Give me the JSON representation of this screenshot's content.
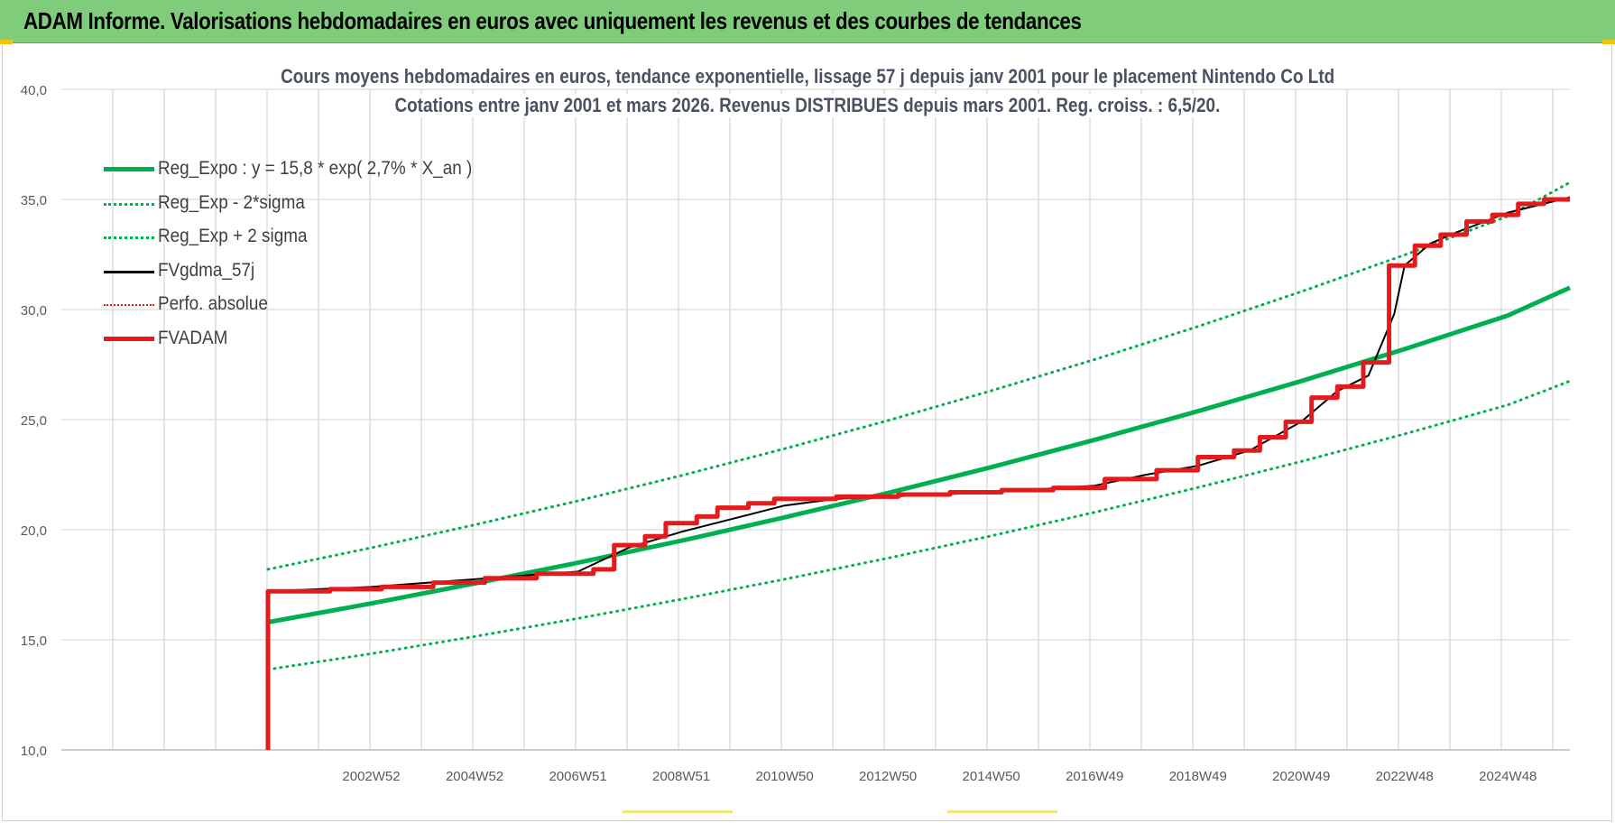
{
  "header": {
    "title": "ADAM Informe. Valorisations hebdomadaires en euros avec uniquement les revenus et des courbes de tendances"
  },
  "colors": {
    "header_bg": "#7fcc7a",
    "green": "#00b050",
    "red": "#e41a1c",
    "black": "#000000",
    "grid": "#d9d9d9",
    "axis_text": "#595959"
  },
  "chart_data": {
    "type": "line",
    "title": "Cours moyens hebdomadaires en euros, tendance exponentielle, lissage 57 j depuis janv 2001 pour le placement Nintendo Co Ltd",
    "subtitle": "Cotations entre janv 2001 et mars 2026. Revenus DISTRIBUES depuis mars 2001. Reg. croiss. : 6,5/20.",
    "ylim": [
      10,
      40
    ],
    "y_ticks": [
      "10,0",
      "15,0",
      "20,0",
      "25,0",
      "30,0",
      "35,0",
      "40,0"
    ],
    "x_ticks": [
      "2002W52",
      "2004W52",
      "2006W51",
      "2008W51",
      "2010W50",
      "2012W50",
      "2014W50",
      "2016W49",
      "2018W49",
      "2020W49",
      "2022W48",
      "2024W48"
    ],
    "x_tick_years": [
      2003.0,
      2005.0,
      2007.0,
      2009.0,
      2011.0,
      2013.0,
      2015.0,
      2017.0,
      2019.0,
      2021.0,
      2023.0,
      2025.0
    ],
    "x_range_years": [
      2001.0,
      2026.2
    ],
    "grid": true,
    "legend_position": "top-left",
    "series": [
      {
        "name": "Reg_Expo : y = 15,8 * exp( 2,7% *  X_an )",
        "style": "solid-thick",
        "color": "#00b050",
        "points": [
          [
            2001.0,
            15.8
          ],
          [
            2003.0,
            16.65
          ],
          [
            2005.0,
            17.56
          ],
          [
            2007.0,
            18.5
          ],
          [
            2009.0,
            19.5
          ],
          [
            2011.0,
            20.56
          ],
          [
            2013.0,
            21.67
          ],
          [
            2015.0,
            22.84
          ],
          [
            2017.0,
            24.08
          ],
          [
            2019.0,
            25.38
          ],
          [
            2021.0,
            26.75
          ],
          [
            2023.0,
            28.2
          ],
          [
            2025.0,
            29.73
          ],
          [
            2026.2,
            30.99
          ]
        ]
      },
      {
        "name": "Reg_Exp - 2*sigma",
        "style": "dotted",
        "color": "#00b050",
        "points": [
          [
            2001.0,
            13.65
          ],
          [
            2003.0,
            14.37
          ],
          [
            2005.0,
            15.15
          ],
          [
            2007.0,
            15.97
          ],
          [
            2009.0,
            16.84
          ],
          [
            2011.0,
            17.75
          ],
          [
            2013.0,
            18.71
          ],
          [
            2015.0,
            19.72
          ],
          [
            2017.0,
            20.79
          ],
          [
            2019.0,
            21.92
          ],
          [
            2021.0,
            23.1
          ],
          [
            2023.0,
            24.35
          ],
          [
            2025.0,
            25.67
          ],
          [
            2026.2,
            26.75
          ]
        ]
      },
      {
        "name": "Reg_Exp + 2 sigma",
        "style": "dotted",
        "color": "#00b050",
        "points": [
          [
            2001.0,
            18.2
          ],
          [
            2003.0,
            19.18
          ],
          [
            2005.0,
            20.22
          ],
          [
            2007.0,
            21.31
          ],
          [
            2009.0,
            22.46
          ],
          [
            2011.0,
            23.68
          ],
          [
            2013.0,
            24.96
          ],
          [
            2015.0,
            26.31
          ],
          [
            2017.0,
            27.73
          ],
          [
            2019.0,
            29.23
          ],
          [
            2021.0,
            30.81
          ],
          [
            2023.0,
            32.48
          ],
          [
            2025.0,
            34.24
          ],
          [
            2026.2,
            35.77
          ]
        ]
      },
      {
        "name": "FVgdma_57j",
        "style": "solid-thin",
        "color": "#000000",
        "points": [
          [
            2001.0,
            17.2
          ],
          [
            2003.0,
            17.4
          ],
          [
            2005.0,
            17.75
          ],
          [
            2007.0,
            18.1
          ],
          [
            2008.0,
            19.2
          ],
          [
            2009.0,
            19.9
          ],
          [
            2010.0,
            20.5
          ],
          [
            2011.0,
            21.1
          ],
          [
            2012.0,
            21.4
          ],
          [
            2013.0,
            21.5
          ],
          [
            2015.0,
            21.7
          ],
          [
            2017.0,
            22.0
          ],
          [
            2018.0,
            22.5
          ],
          [
            2019.0,
            22.9
          ],
          [
            2020.0,
            23.6
          ],
          [
            2021.0,
            24.9
          ],
          [
            2021.7,
            26.3
          ],
          [
            2022.3,
            27.0
          ],
          [
            2022.8,
            29.8
          ],
          [
            2023.0,
            32.0
          ],
          [
            2023.5,
            33.0
          ],
          [
            2024.0,
            33.5
          ],
          [
            2025.0,
            34.4
          ],
          [
            2026.2,
            35.1
          ]
        ]
      },
      {
        "name": "Perfo. absolue",
        "style": "dotted",
        "color": "#e41a1c",
        "points": []
      },
      {
        "name": "FVADAM",
        "style": "solid-thick",
        "color": "#e41a1c",
        "points": [
          [
            2001.0,
            10.0
          ],
          [
            2001.0,
            17.2
          ],
          [
            2002.2,
            17.3
          ],
          [
            2003.2,
            17.4
          ],
          [
            2004.2,
            17.6
          ],
          [
            2005.2,
            17.8
          ],
          [
            2006.2,
            18.0
          ],
          [
            2007.3,
            18.2
          ],
          [
            2007.7,
            19.3
          ],
          [
            2008.3,
            19.7
          ],
          [
            2008.7,
            20.3
          ],
          [
            2009.3,
            20.6
          ],
          [
            2009.7,
            21.0
          ],
          [
            2010.3,
            21.2
          ],
          [
            2010.8,
            21.4
          ],
          [
            2012.0,
            21.5
          ],
          [
            2013.2,
            21.6
          ],
          [
            2014.2,
            21.7
          ],
          [
            2015.2,
            21.8
          ],
          [
            2016.2,
            21.9
          ],
          [
            2017.2,
            22.3
          ],
          [
            2018.2,
            22.7
          ],
          [
            2019.0,
            23.3
          ],
          [
            2019.7,
            23.6
          ],
          [
            2020.2,
            24.2
          ],
          [
            2020.7,
            24.9
          ],
          [
            2021.2,
            26.0
          ],
          [
            2021.7,
            26.5
          ],
          [
            2022.2,
            27.6
          ],
          [
            2022.7,
            32.0
          ],
          [
            2023.2,
            32.9
          ],
          [
            2023.7,
            33.4
          ],
          [
            2024.2,
            34.0
          ],
          [
            2024.7,
            34.3
          ],
          [
            2025.2,
            34.8
          ],
          [
            2025.7,
            35.0
          ],
          [
            2026.2,
            35.0
          ]
        ]
      }
    ]
  }
}
